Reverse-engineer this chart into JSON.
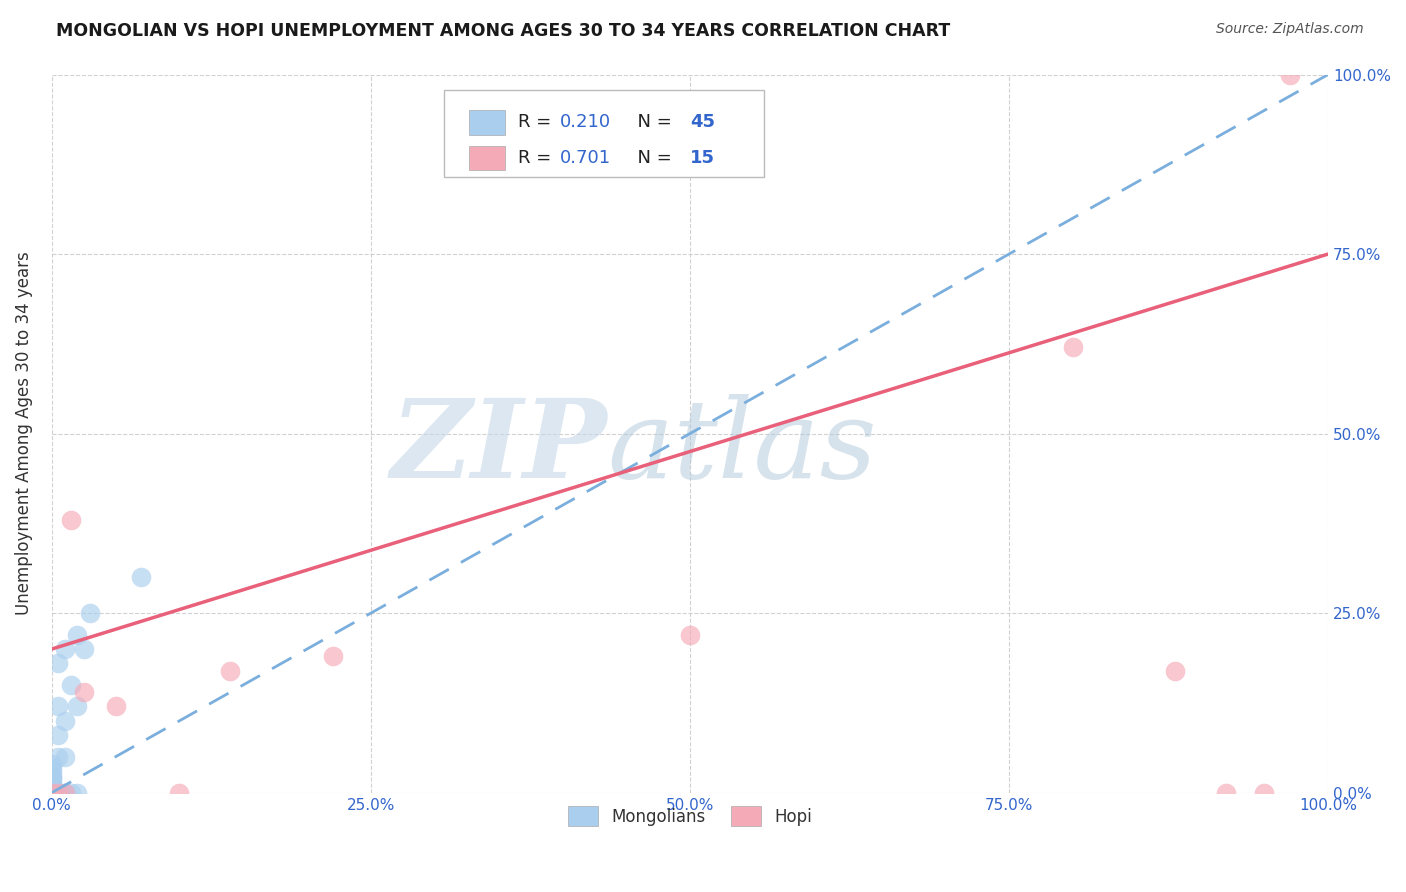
{
  "title": "MONGOLIAN VS HOPI UNEMPLOYMENT AMONG AGES 30 TO 34 YEARS CORRELATION CHART",
  "source": "Source: ZipAtlas.com",
  "ylabel": "Unemployment Among Ages 30 to 34 years",
  "xlim": [
    0.0,
    1.0
  ],
  "ylim": [
    0.0,
    1.0
  ],
  "xticks": [
    0.0,
    0.25,
    0.5,
    0.75,
    1.0
  ],
  "yticks": [
    0.0,
    0.25,
    0.5,
    0.75,
    1.0
  ],
  "xtick_labels": [
    "0.0%",
    "25.0%",
    "50.0%",
    "75.0%",
    "100.0%"
  ],
  "ytick_labels": [
    "0.0%",
    "25.0%",
    "50.0%",
    "75.0%",
    "100.0%"
  ],
  "mongolian_color": "#aacfee",
  "hopi_color": "#f5aab8",
  "mongolian_line_color": "#7aaedd",
  "hopi_line_color": "#e8607a",
  "accent_color": "#3366cc",
  "mongolian_R": 0.21,
  "mongolian_N": 45,
  "hopi_R": 0.701,
  "hopi_N": 15,
  "watermark_zip_color": "#c5d8e8",
  "watermark_atlas_color": "#b0c8da",
  "mongolian_x": [
    0.0,
    0.0,
    0.0,
    0.0,
    0.0,
    0.0,
    0.0,
    0.0,
    0.0,
    0.0,
    0.0,
    0.0,
    0.0,
    0.0,
    0.0,
    0.0,
    0.0,
    0.0,
    0.0,
    0.0,
    0.005,
    0.005,
    0.005,
    0.005,
    0.005,
    0.005,
    0.005,
    0.01,
    0.01,
    0.01,
    0.01,
    0.01,
    0.015,
    0.015,
    0.02,
    0.02,
    0.02,
    0.025,
    0.03,
    0.07,
    0.0,
    0.0,
    0.0,
    0.0,
    0.0
  ],
  "mongolian_y": [
    0.0,
    0.0,
    0.0,
    0.0,
    0.0,
    0.0,
    0.0,
    0.0,
    0.0,
    0.0,
    0.005,
    0.01,
    0.01,
    0.015,
    0.02,
    0.02,
    0.025,
    0.03,
    0.035,
    0.04,
    0.0,
    0.0,
    0.0,
    0.05,
    0.08,
    0.12,
    0.18,
    0.0,
    0.0,
    0.05,
    0.1,
    0.2,
    0.0,
    0.15,
    0.0,
    0.12,
    0.22,
    0.2,
    0.25,
    0.3,
    0.0,
    0.0,
    0.0,
    0.0,
    0.0
  ],
  "hopi_x": [
    0.0,
    0.005,
    0.01,
    0.015,
    0.025,
    0.05,
    0.1,
    0.14,
    0.22,
    0.5,
    0.8,
    0.88,
    0.92,
    0.95,
    0.97
  ],
  "hopi_y": [
    0.0,
    0.0,
    0.0,
    0.38,
    0.14,
    0.12,
    0.0,
    0.17,
    0.19,
    0.22,
    0.62,
    0.17,
    0.0,
    0.0,
    1.0
  ]
}
